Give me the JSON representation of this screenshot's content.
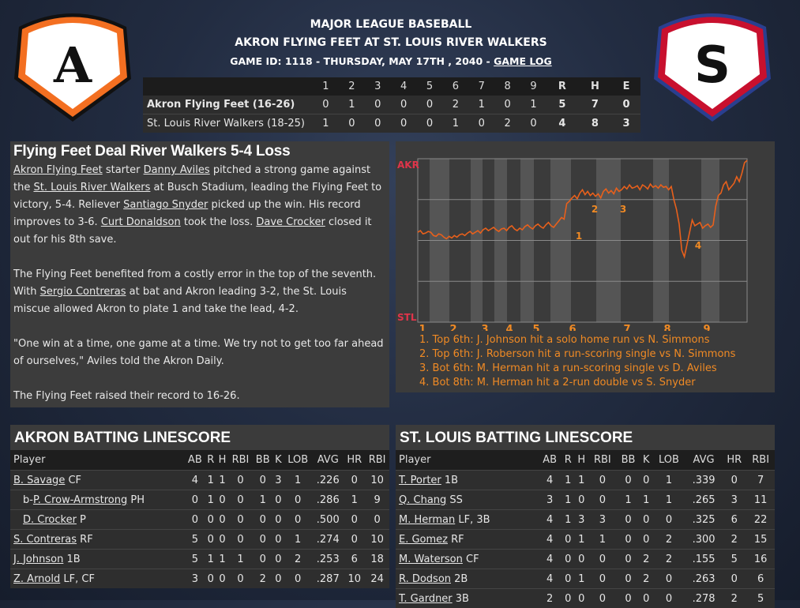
{
  "header": {
    "league": "MAJOR LEAGUE BASEBALL",
    "matchup": "AKRON FLYING FEET AT ST. LOUIS RIVER WALKERS",
    "game_info": "GAME ID: 1118 - THURSDAY, MAY 17TH , 2040 -",
    "game_log_link": "GAME LOG"
  },
  "logos": {
    "away": {
      "letter": "A",
      "color": "#f36f21",
      "icon": "akron-logo-icon"
    },
    "home": {
      "letter": "S",
      "color": "#c8102e",
      "accent": "#2a3f8f",
      "icon": "stlouis-logo-icon"
    }
  },
  "scoreboard": {
    "headers": [
      "1",
      "2",
      "3",
      "4",
      "5",
      "6",
      "7",
      "8",
      "9",
      "R",
      "H",
      "E"
    ],
    "away": {
      "team": "Akron Flying Feet (16-26)",
      "cells": [
        "0",
        "1",
        "0",
        "0",
        "0",
        "2",
        "1",
        "0",
        "1",
        "5",
        "7",
        "0"
      ]
    },
    "home": {
      "team": "St. Louis River Walkers (18-25)",
      "cells": [
        "1",
        "0",
        "0",
        "0",
        "0",
        "1",
        "0",
        "2",
        "0",
        "4",
        "8",
        "3"
      ]
    }
  },
  "story": {
    "headline": "Flying Feet Deal River Walkers 5-4 Loss",
    "p1": [
      {
        "t": "Akron Flying Feet",
        "u": true
      },
      {
        "t": " starter "
      },
      {
        "t": "Danny Aviles",
        "u": true
      },
      {
        "t": " pitched a strong game against the "
      },
      {
        "t": "St. Louis River Walkers",
        "u": true
      },
      {
        "t": " at Busch Stadium, leading the Flying Feet to victory, 5-4. Reliever "
      },
      {
        "t": "Santiago Snyder",
        "u": true
      },
      {
        "t": " picked up the win. His record improves to 3-6. "
      },
      {
        "t": "Curt Donaldson",
        "u": true
      },
      {
        "t": " took the loss. "
      },
      {
        "t": "Dave Crocker",
        "u": true
      },
      {
        "t": " closed it out for his 8th save."
      }
    ],
    "p2": [
      {
        "t": "The Flying Feet benefited from a costly error in the top of the seventh. With "
      },
      {
        "t": "Sergio Contreras",
        "u": true
      },
      {
        "t": " at bat and Akron leading 3-2, the St. Louis miscue allowed Akron to plate 1 and take the lead, 4-2."
      }
    ],
    "p3": "\"One win at a time, one game at a time. We try not to get too far ahead of ourselves,\" Aviles told the Akron Daily.",
    "p4": "The Flying Feet raised their record to 16-26."
  },
  "chart_data": {
    "type": "line",
    "top_label": "AKR",
    "bottom_label": "STL",
    "innings": [
      "1",
      "2",
      "3",
      "4",
      "5",
      "6",
      "7",
      "8",
      "9"
    ],
    "series_color": "#e8601c",
    "marker_labels": [
      "1",
      "2",
      "3",
      "4"
    ],
    "values": [
      10,
      12,
      8,
      9,
      11,
      10,
      6,
      5,
      8,
      7,
      4,
      2,
      5,
      3,
      6,
      4,
      7,
      8,
      6,
      9,
      11,
      8,
      10,
      12,
      9,
      13,
      15,
      12,
      14,
      16,
      13,
      11,
      14,
      15,
      12,
      16,
      18,
      14,
      12,
      15,
      13,
      17,
      19,
      16,
      14,
      18,
      20,
      17,
      15,
      19,
      22,
      18,
      16,
      20,
      24,
      28,
      26,
      45,
      48,
      52,
      55,
      51,
      58,
      62,
      56,
      60,
      55,
      58,
      54,
      57,
      52,
      60,
      63,
      58,
      61,
      57,
      64,
      60,
      62,
      66,
      63,
      68,
      64,
      65,
      67,
      62,
      68,
      66,
      63,
      69,
      65,
      67,
      64,
      68,
      65,
      66,
      62,
      66,
      50,
      38,
      20,
      -12,
      -20,
      -5,
      10,
      25,
      18,
      20,
      22,
      15,
      18,
      20,
      16,
      19,
      42,
      55,
      58,
      68,
      72,
      62,
      66,
      70,
      78,
      72,
      82,
      95,
      98
    ],
    "notes": [
      "1. Top 6th: J. Johnson hit a solo home run vs N. Simmons",
      "2. Top 6th: J. Roberson hit a run-scoring single vs N. Simmons",
      "3. Bot 6th: M. Herman hit a run-scoring single vs D. Aviles",
      "4. Bot 8th: M. Herman hit a 2-run double vs S. Snyder"
    ]
  },
  "away_batting": {
    "title": "AKRON BATTING LINESCORE",
    "headers": [
      "Player",
      "AB",
      "R",
      "H",
      "RBI",
      "BB",
      "K",
      "LOB",
      "AVG",
      "HR",
      "RBI"
    ],
    "rows": [
      {
        "name": "B. Savage",
        "pos": " CF",
        "sub": false,
        "stats": [
          "4",
          "1",
          "1",
          "0",
          "0",
          "3",
          "1",
          ".226",
          "0",
          "10"
        ]
      },
      {
        "name": "P. Crow-Armstrong",
        "prefix": "b-",
        "pos": " PH",
        "sub": true,
        "stats": [
          "0",
          "1",
          "0",
          "0",
          "1",
          "0",
          "0",
          ".286",
          "1",
          "9"
        ]
      },
      {
        "name": "D. Crocker",
        "pos": " P",
        "sub": true,
        "stats": [
          "0",
          "0",
          "0",
          "0",
          "0",
          "0",
          "0",
          ".500",
          "0",
          "0"
        ]
      },
      {
        "name": "S. Contreras",
        "pos": " RF",
        "sub": false,
        "stats": [
          "5",
          "0",
          "0",
          "0",
          "0",
          "0",
          "1",
          ".274",
          "0",
          "10"
        ]
      },
      {
        "name": "J. Johnson",
        "pos": " 1B",
        "sub": false,
        "stats": [
          "5",
          "1",
          "1",
          "1",
          "0",
          "0",
          "2",
          ".253",
          "6",
          "18"
        ]
      },
      {
        "name": "Z. Arnold",
        "pos": " LF, CF",
        "sub": false,
        "stats": [
          "3",
          "0",
          "0",
          "0",
          "2",
          "0",
          "0",
          ".287",
          "10",
          "24"
        ]
      }
    ]
  },
  "home_batting": {
    "title": "ST. LOUIS BATTING LINESCORE",
    "headers": [
      "Player",
      "AB",
      "R",
      "H",
      "RBI",
      "BB",
      "K",
      "LOB",
      "AVG",
      "HR",
      "RBI"
    ],
    "rows": [
      {
        "name": "T. Porter",
        "pos": " 1B",
        "sub": false,
        "stats": [
          "4",
          "1",
          "1",
          "0",
          "0",
          "0",
          "1",
          ".339",
          "0",
          "7"
        ]
      },
      {
        "name": "Q. Chang",
        "pos": " SS",
        "sub": false,
        "stats": [
          "3",
          "1",
          "0",
          "0",
          "1",
          "1",
          "1",
          ".265",
          "3",
          "11"
        ]
      },
      {
        "name": "M. Herman",
        "pos": " LF, 3B",
        "sub": false,
        "stats": [
          "4",
          "1",
          "3",
          "3",
          "0",
          "0",
          "0",
          ".325",
          "6",
          "22"
        ]
      },
      {
        "name": "E. Gomez",
        "pos": " RF",
        "sub": false,
        "stats": [
          "4",
          "0",
          "1",
          "1",
          "0",
          "0",
          "2",
          ".300",
          "2",
          "15"
        ]
      },
      {
        "name": "M. Waterson",
        "pos": " CF",
        "sub": false,
        "stats": [
          "4",
          "0",
          "0",
          "0",
          "0",
          "2",
          "2",
          ".155",
          "5",
          "16"
        ]
      },
      {
        "name": "R. Dodson",
        "pos": " 2B",
        "sub": false,
        "stats": [
          "4",
          "0",
          "1",
          "0",
          "0",
          "2",
          "0",
          ".263",
          "0",
          "6"
        ]
      },
      {
        "name": "T. Gardner",
        "pos": " 3B",
        "sub": false,
        "stats": [
          "2",
          "0",
          "0",
          "0",
          "0",
          "0",
          "0",
          ".278",
          "2",
          "5"
        ]
      }
    ]
  }
}
